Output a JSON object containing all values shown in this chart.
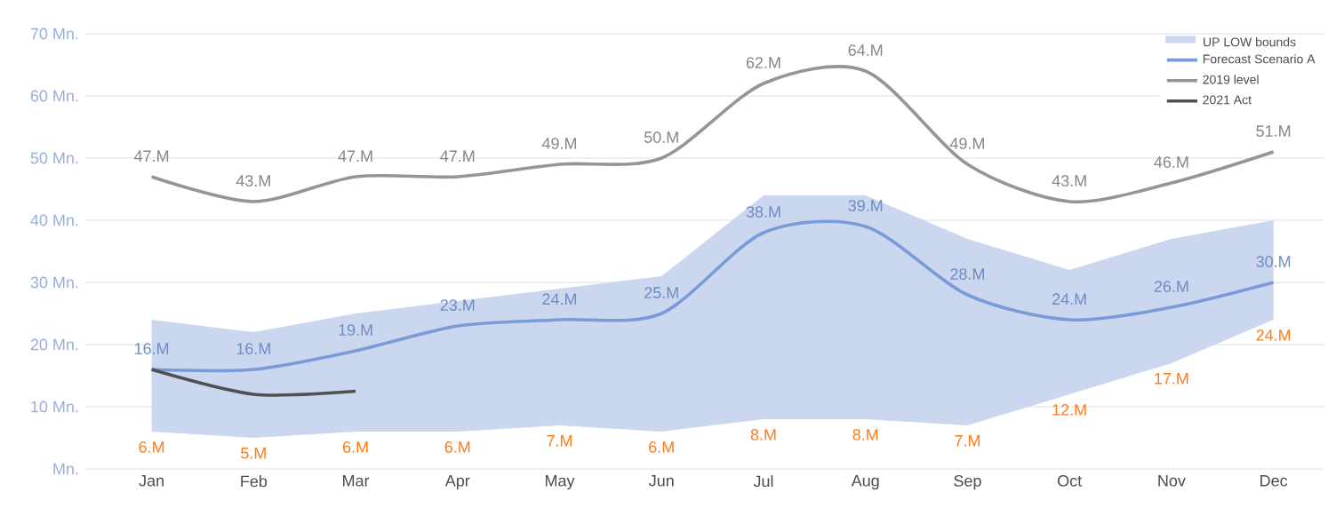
{
  "chart_data": {
    "type": "line",
    "categories": [
      "Jan",
      "Feb",
      "Mar",
      "Apr",
      "May",
      "Jun",
      "Jul",
      "Aug",
      "Sep",
      "Oct",
      "Nov",
      "Dec"
    ],
    "series": [
      {
        "name": "Forecast Scenario A",
        "color": "#7a9bd8",
        "values": [
          16,
          16,
          19,
          23,
          24,
          25,
          38,
          39,
          28,
          24,
          26,
          30
        ],
        "value_labels": [
          "16.M",
          "16.M",
          "19.M",
          "23.M",
          "24.M",
          "25.M",
          "38.M",
          "39.M",
          "28.M",
          "24.M",
          "26.M",
          "30.M"
        ],
        "lower": [
          6,
          5,
          6,
          6,
          7,
          6,
          8,
          8,
          7,
          12,
          17,
          24
        ],
        "upper": [
          24,
          22,
          25,
          27,
          29,
          31,
          44,
          44,
          37,
          32,
          37,
          40
        ]
      },
      {
        "name": "2019 level",
        "color": "#959595",
        "values": [
          47,
          43,
          47,
          47,
          49,
          50,
          62,
          64,
          49,
          43,
          46,
          51
        ],
        "value_labels": [
          "47.M",
          "43.M",
          "47.M",
          "47.M",
          "49.M",
          "50.M",
          "62.M",
          "64.M",
          "49.M",
          "43.M",
          "46.M",
          "51.M"
        ]
      },
      {
        "name": "2021 Act",
        "color": "#505050",
        "values": [
          16,
          12,
          12.5,
          null,
          null,
          null,
          null,
          null,
          null,
          null,
          null,
          null
        ]
      }
    ],
    "annotations": [
      "UP LOW bounds",
      {
        "text": "6.M",
        "x": "Jan",
        "y": 6
      },
      {
        "text": "5.M",
        "x": "Feb",
        "y": 5
      },
      {
        "text": "6.M",
        "x": "Mar",
        "y": 6
      },
      {
        "text": "6.M",
        "x": "Apr",
        "y": 6
      },
      {
        "text": "7.M",
        "x": "May",
        "y": 7
      },
      {
        "text": "6.M",
        "x": "Jun",
        "y": 6
      },
      {
        "text": "8.M",
        "x": "Jul",
        "y": 8
      },
      {
        "text": "8.M",
        "x": "Aug",
        "y": 8
      },
      {
        "text": "7.M",
        "x": "Sep",
        "y": 7
      },
      {
        "text": "12.M",
        "x": "Oct",
        "y": 12
      },
      {
        "text": "17.M",
        "x": "Nov",
        "y": 17
      },
      {
        "text": "24.M",
        "x": "Dec",
        "y": 24
      }
    ],
    "ylim": [
      0,
      70
    ],
    "yticks": [
      {
        "value": 0,
        "label": "Mn."
      },
      {
        "value": 10,
        "label": "10 Mn."
      },
      {
        "value": 20,
        "label": "20 Mn."
      },
      {
        "value": 30,
        "label": "30 Mn."
      },
      {
        "value": 40,
        "label": "40 Mn."
      },
      {
        "value": 50,
        "label": "50 Mn."
      },
      {
        "value": 60,
        "label": "60 Mn."
      },
      {
        "value": 70,
        "label": "70 Mn."
      }
    ],
    "grid": "y",
    "legend": "top right",
    "marker": "none"
  }
}
